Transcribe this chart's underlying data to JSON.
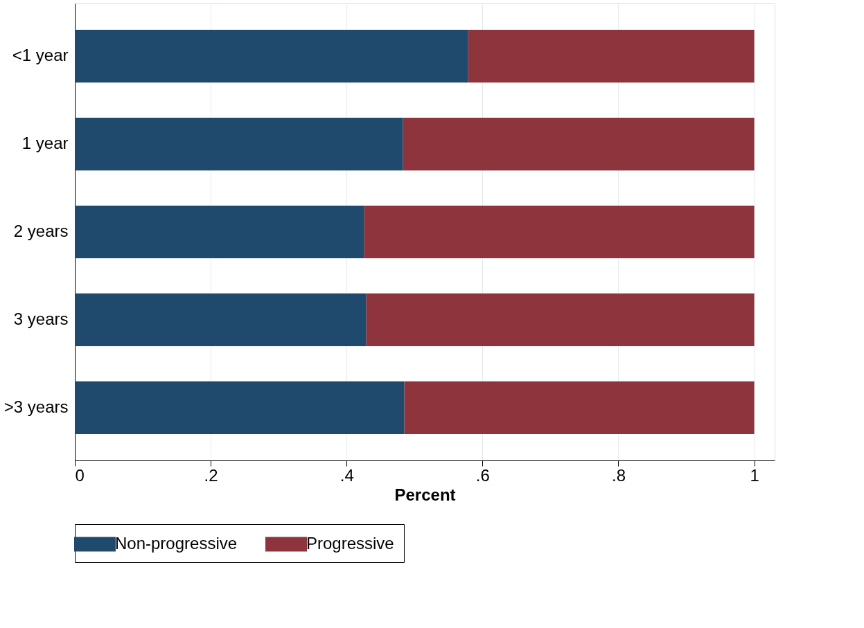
{
  "chart_data": {
    "type": "bar",
    "orientation": "horizontal",
    "stacked": true,
    "categories": [
      "<1 year",
      "1 year",
      "2 years",
      "3 years",
      ">3 years"
    ],
    "series": [
      {
        "name": "Non-progressive",
        "color": "#1f4a6e",
        "values": [
          0.579,
          0.483,
          0.426,
          0.429,
          0.485
        ]
      },
      {
        "name": "Progressive",
        "color": "#8e343c",
        "values": [
          0.421,
          0.517,
          0.574,
          0.571,
          0.515
        ]
      }
    ],
    "xlabel": "Percent",
    "xlim": [
      0,
      1.03
    ],
    "xticks": [
      0,
      {
        "value": 0.2,
        "label": ".2"
      },
      {
        "value": 0.4,
        "label": ".4"
      },
      {
        "value": 0.6,
        "label": ".6"
      },
      {
        "value": 0.8,
        "label": ".8"
      },
      1
    ],
    "grid": "x",
    "legend": "bottom"
  }
}
